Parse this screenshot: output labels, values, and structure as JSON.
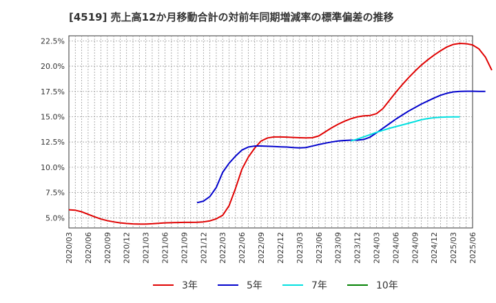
{
  "chart_data": {
    "type": "line",
    "title": "[4519]  売上高12か月移動合計の対前年同期増減率の標準偏差の推移",
    "xlabel": "",
    "ylabel": "",
    "ylim": [
      4.0,
      23.0
    ],
    "y_ticks": [
      "5.0%",
      "7.5%",
      "10.0%",
      "12.5%",
      "15.0%",
      "17.5%",
      "20.0%",
      "22.5%"
    ],
    "y_tick_values": [
      5.0,
      7.5,
      10.0,
      12.5,
      15.0,
      17.5,
      20.0,
      22.5
    ],
    "x_ticks": [
      "2020/03",
      "2020/06",
      "2020/09",
      "2020/12",
      "2021/03",
      "2021/06",
      "2021/09",
      "2021/12",
      "2022/03",
      "2022/06",
      "2022/09",
      "2022/12",
      "2023/03",
      "2023/06",
      "2023/09",
      "2023/12",
      "2024/03",
      "2024/06",
      "2024/09",
      "2024/12",
      "2025/03",
      "2025/06"
    ],
    "x_start": "2020/03",
    "grid": true,
    "legend_position": "bottom",
    "series": [
      {
        "name": "3年",
        "color": "#e00000",
        "start": "2020/03",
        "values": [
          5.8,
          5.75,
          5.6,
          5.35,
          5.1,
          4.88,
          4.72,
          4.6,
          4.5,
          4.44,
          4.4,
          4.38,
          4.38,
          4.42,
          4.46,
          4.5,
          4.52,
          4.54,
          4.55,
          4.55,
          4.56,
          4.6,
          4.7,
          4.9,
          5.25,
          6.2,
          7.9,
          9.8,
          11.0,
          11.9,
          12.6,
          12.9,
          13.0,
          13.0,
          12.98,
          12.95,
          12.92,
          12.9,
          12.92,
          13.1,
          13.5,
          13.9,
          14.25,
          14.55,
          14.8,
          14.98,
          15.08,
          15.12,
          15.3,
          15.8,
          16.6,
          17.4,
          18.15,
          18.85,
          19.5,
          20.1,
          20.62,
          21.1,
          21.52,
          21.9,
          22.15,
          22.25,
          22.22,
          22.1,
          21.7,
          20.9,
          19.6
        ]
      },
      {
        "name": "5年",
        "color": "#0000cc",
        "start": "2021/11",
        "values": [
          6.5,
          6.65,
          7.1,
          8.0,
          9.5,
          10.4,
          11.1,
          11.7,
          12.0,
          12.1,
          12.1,
          12.08,
          12.05,
          12.02,
          12.0,
          11.95,
          11.92,
          11.95,
          12.1,
          12.25,
          12.38,
          12.5,
          12.6,
          12.65,
          12.68,
          12.68,
          12.75,
          12.98,
          13.4,
          13.85,
          14.3,
          14.75,
          15.15,
          15.55,
          15.9,
          16.25,
          16.55,
          16.85,
          17.12,
          17.32,
          17.45,
          17.5,
          17.52,
          17.52,
          17.5,
          17.5
        ]
      },
      {
        "name": "7年",
        "color": "#00e0e0",
        "start": "2023/11",
        "values": [
          12.6,
          12.78,
          13.0,
          13.22,
          13.45,
          13.65,
          13.85,
          14.02,
          14.18,
          14.35,
          14.52,
          14.7,
          14.82,
          14.9,
          14.95,
          14.97,
          14.98,
          14.98
        ]
      },
      {
        "name": "10年",
        "color": "#008000",
        "start": "",
        "values": []
      }
    ]
  }
}
